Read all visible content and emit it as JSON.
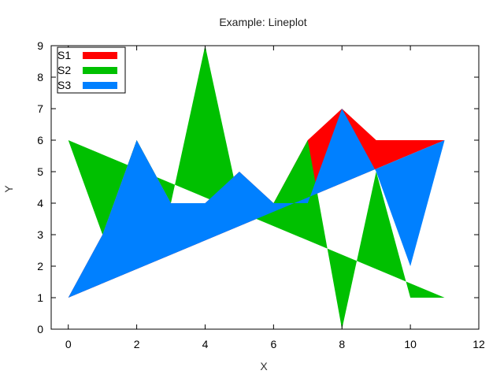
{
  "chart_data": {
    "type": "area",
    "title": "Example: Lineplot",
    "xlabel": "X",
    "ylabel": "Y",
    "xlim": [
      -0.5,
      12
    ],
    "ylim": [
      0,
      9
    ],
    "xticks": [
      0,
      2,
      4,
      6,
      8,
      10,
      12
    ],
    "yticks": [
      0,
      1,
      2,
      3,
      4,
      5,
      6,
      7,
      8,
      9
    ],
    "grid": false,
    "legend_position": "top-left",
    "series": [
      {
        "name": "S1",
        "color": "#ff0000",
        "x": [
          0,
          1,
          2,
          3,
          4,
          5,
          6,
          7,
          8,
          9,
          10,
          11
        ],
        "y": [
          1,
          3,
          6,
          4,
          4,
          5,
          4,
          6,
          7,
          6,
          6,
          6
        ]
      },
      {
        "name": "S2",
        "color": "#00c000",
        "x": [
          0,
          1,
          2,
          3,
          4,
          5,
          6,
          7,
          8,
          9,
          10,
          11
        ],
        "y": [
          6,
          3,
          6,
          4,
          9,
          4,
          4,
          6,
          0,
          5,
          1,
          1
        ]
      },
      {
        "name": "S3",
        "color": "#0080ff",
        "x": [
          0,
          1,
          2,
          3,
          4,
          5,
          6,
          7,
          8,
          9,
          10,
          11
        ],
        "y": [
          1,
          3,
          6,
          4,
          4,
          5,
          4,
          4,
          7,
          5,
          2,
          6
        ]
      }
    ]
  }
}
